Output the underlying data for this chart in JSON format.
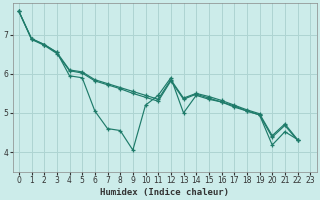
{
  "xlabel": "Humidex (Indice chaleur)",
  "background_color": "#ccecea",
  "grid_color": "#aed4d2",
  "line_color": "#1e7b6a",
  "xlim": [
    -0.5,
    23.5
  ],
  "ylim": [
    3.5,
    7.8
  ],
  "yticks": [
    4,
    5,
    6,
    7
  ],
  "xticks": [
    0,
    1,
    2,
    3,
    4,
    5,
    6,
    7,
    8,
    9,
    10,
    11,
    12,
    13,
    14,
    15,
    16,
    17,
    18,
    19,
    20,
    21,
    22,
    23
  ],
  "series1": [
    [
      0,
      7.6
    ],
    [
      1,
      6.9
    ],
    [
      2,
      6.75
    ],
    [
      3,
      6.55
    ],
    [
      4,
      5.95
    ],
    [
      5,
      5.9
    ],
    [
      6,
      5.05
    ],
    [
      7,
      4.6
    ],
    [
      8,
      4.55
    ],
    [
      9,
      4.05
    ],
    [
      10,
      5.2
    ],
    [
      11,
      5.45
    ],
    [
      12,
      5.9
    ],
    [
      13,
      5.0
    ],
    [
      14,
      5.45
    ],
    [
      15,
      5.35
    ],
    [
      16,
      5.28
    ],
    [
      17,
      5.15
    ],
    [
      18,
      5.05
    ],
    [
      19,
      4.95
    ],
    [
      20,
      4.18
    ],
    [
      21,
      4.52
    ],
    [
      22,
      4.32
    ]
  ],
  "series2": [
    [
      0,
      7.6
    ],
    [
      1,
      6.9
    ],
    [
      2,
      6.75
    ],
    [
      3,
      6.55
    ],
    [
      4,
      6.1
    ],
    [
      5,
      6.05
    ],
    [
      6,
      5.85
    ],
    [
      7,
      5.75
    ],
    [
      8,
      5.65
    ],
    [
      9,
      5.55
    ],
    [
      10,
      5.45
    ],
    [
      11,
      5.35
    ],
    [
      12,
      5.85
    ],
    [
      13,
      5.38
    ],
    [
      14,
      5.5
    ],
    [
      15,
      5.42
    ],
    [
      16,
      5.32
    ],
    [
      17,
      5.2
    ],
    [
      18,
      5.08
    ],
    [
      19,
      4.98
    ],
    [
      20,
      4.42
    ],
    [
      21,
      4.72
    ],
    [
      22,
      4.32
    ]
  ],
  "series3": [
    [
      0,
      7.6
    ],
    [
      1,
      6.88
    ],
    [
      2,
      6.73
    ],
    [
      3,
      6.52
    ],
    [
      4,
      6.08
    ],
    [
      5,
      6.02
    ],
    [
      6,
      5.82
    ],
    [
      7,
      5.72
    ],
    [
      8,
      5.62
    ],
    [
      9,
      5.5
    ],
    [
      10,
      5.4
    ],
    [
      11,
      5.3
    ],
    [
      12,
      5.82
    ],
    [
      13,
      5.35
    ],
    [
      14,
      5.48
    ],
    [
      15,
      5.38
    ],
    [
      16,
      5.28
    ],
    [
      17,
      5.18
    ],
    [
      18,
      5.05
    ],
    [
      19,
      4.95
    ],
    [
      20,
      4.38
    ],
    [
      21,
      4.68
    ],
    [
      22,
      4.3
    ]
  ]
}
